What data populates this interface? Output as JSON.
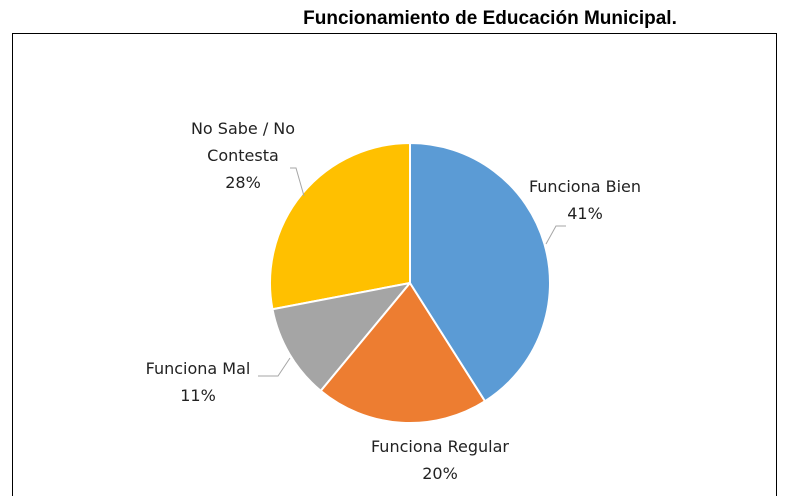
{
  "chart_data": {
    "type": "pie",
    "title": "Funcionamiento de Educación Municipal.",
    "categories": [
      "Funciona Bien",
      "Funciona Regular",
      "Funciona Mal",
      "No Sabe / No Contesta"
    ],
    "values": [
      41,
      20,
      11,
      28
    ],
    "value_labels": [
      "41%",
      "20%",
      "11%",
      "28%"
    ],
    "colors": [
      "#5b9bd5",
      "#ed7d31",
      "#a5a5a5",
      "#ffc000"
    ]
  }
}
